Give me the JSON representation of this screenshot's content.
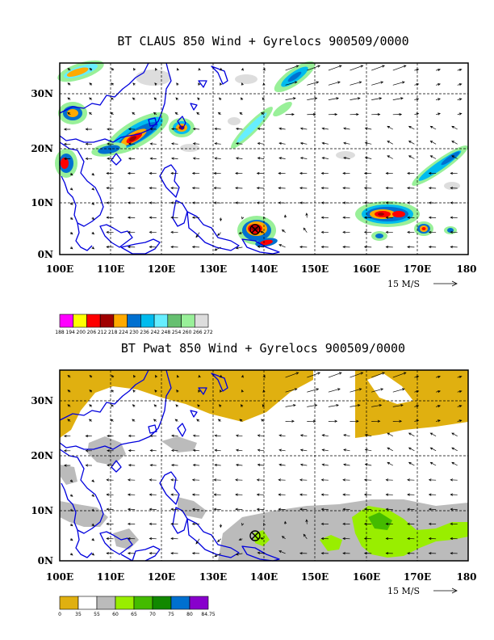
{
  "panels": [
    {
      "title": "BT CLAUS 850 Wind + Gyrelocs 900509/0000",
      "x_ticks": [
        "100E",
        "110E",
        "120E",
        "130E",
        "140E",
        "150E",
        "160E",
        "170E",
        "180"
      ],
      "y_ticks": [
        "0N",
        "10N",
        "20N",
        "30N"
      ],
      "reference_vector_label": "15 M/S",
      "gyre_location": {
        "lon": 138,
        "lat": 4.5
      },
      "legend": {
        "labels": [
          "188",
          "194",
          "200",
          "206",
          "212",
          "218",
          "224",
          "230",
          "236",
          "242",
          "248",
          "254",
          "260",
          "266",
          "272"
        ],
        "colors": [
          "#ff00ff",
          "#ffff00",
          "#ff0000",
          "#a00000",
          "#ffaa00",
          "#0070d0",
          "#00bbee",
          "#66eeff",
          "#66c070",
          "#99f099",
          "#dddddd"
        ]
      }
    },
    {
      "title": "BT Pwat 850 Wind + Gyrelocs 900509/0000",
      "x_ticks": [
        "100E",
        "110E",
        "120E",
        "130E",
        "140E",
        "150E",
        "160E",
        "170E",
        "180"
      ],
      "y_ticks": [
        "0N",
        "10N",
        "20N",
        "30N"
      ],
      "reference_vector_label": "15 M/S",
      "gyre_location": {
        "lon": 138,
        "lat": 4.5
      },
      "legend": {
        "labels": [
          "0",
          "35",
          "55",
          "60",
          "65",
          "70",
          "75",
          "80",
          "84.75"
        ],
        "colors": [
          "#e0b010",
          "#ffffff",
          "#bbbbbb",
          "#99ee00",
          "#44bb00",
          "#118800",
          "#0070d0",
          "#8800cc"
        ]
      }
    }
  ]
}
